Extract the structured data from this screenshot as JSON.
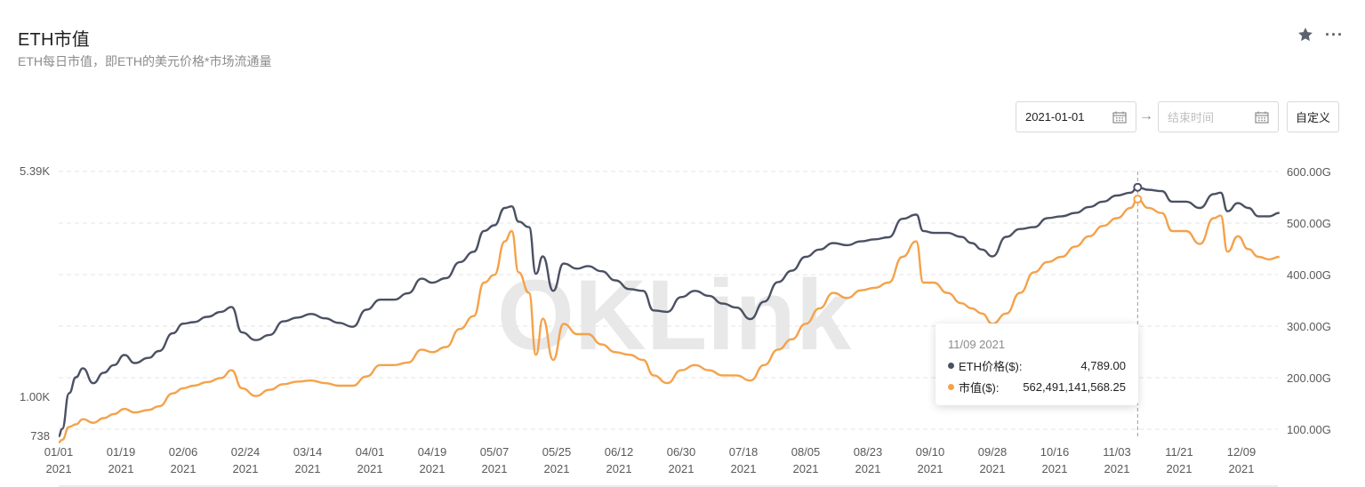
{
  "header": {
    "title": "ETH市值",
    "subtitle": "ETH每日市值，即ETH的美元价格*市场流通量"
  },
  "toolbar": {
    "favorite_icon": "star-icon",
    "more_label": "···"
  },
  "date_range": {
    "start_value": "2021-01-01",
    "end_placeholder": "结束时间",
    "separator_icon": "arrow-right-icon",
    "calendar_icon": "calendar-icon",
    "custom_label": "自定义"
  },
  "watermark": "OKLink",
  "tooltip": {
    "date": "11/09 2021",
    "rows": [
      {
        "label": "ETH价格($):",
        "value": "4,789.00"
      },
      {
        "label": "市值($):",
        "value": "562,491,141,568.25"
      }
    ]
  },
  "colors": {
    "price": "#4a5163",
    "market_cap": "#f4a24a",
    "grid": "#e5e5e5",
    "crosshair": "#9a9a9a"
  },
  "chart_data": {
    "type": "line",
    "x_tick_labels": [
      [
        "01/01",
        "2021"
      ],
      [
        "01/19",
        "2021"
      ],
      [
        "02/06",
        "2021"
      ],
      [
        "02/24",
        "2021"
      ],
      [
        "03/14",
        "2021"
      ],
      [
        "04/01",
        "2021"
      ],
      [
        "04/19",
        "2021"
      ],
      [
        "05/07",
        "2021"
      ],
      [
        "05/25",
        "2021"
      ],
      [
        "06/12",
        "2021"
      ],
      [
        "06/30",
        "2021"
      ],
      [
        "07/18",
        "2021"
      ],
      [
        "08/05",
        "2021"
      ],
      [
        "08/23",
        "2021"
      ],
      [
        "09/10",
        "2021"
      ],
      [
        "09/28",
        "2021"
      ],
      [
        "10/16",
        "2021"
      ],
      [
        "11/03",
        "2021"
      ],
      [
        "11/21",
        "2021"
      ],
      [
        "12/09",
        "2021"
      ]
    ],
    "y_left_ticks": [
      "5.39K",
      "1.00K",
      "738"
    ],
    "y_left_values": [
      5390,
      1000,
      738
    ],
    "y_right_ticks": [
      "600.00G",
      "500.00G",
      "400.00G",
      "300.00G",
      "200.00G",
      "100.00G"
    ],
    "y_right_range": [
      100,
      600
    ],
    "highlight_date": "11/09 2021",
    "series": [
      {
        "name": "ETH价格($)",
        "axis": "left",
        "x": [
          "01/01",
          "01/02",
          "01/04",
          "01/06",
          "01/08",
          "01/11",
          "01/14",
          "01/17",
          "01/20",
          "01/23",
          "01/27",
          "01/30",
          "02/03",
          "02/06",
          "02/09",
          "02/13",
          "02/17",
          "02/20",
          "02/23",
          "02/27",
          "03/03",
          "03/07",
          "03/11",
          "03/15",
          "03/19",
          "03/23",
          "03/27",
          "03/31",
          "04/04",
          "04/08",
          "04/12",
          "04/16",
          "04/19",
          "04/23",
          "04/27",
          "05/01",
          "05/04",
          "05/07",
          "05/10",
          "05/12",
          "05/14",
          "05/17",
          "05/19",
          "05/21",
          "05/24",
          "05/27",
          "05/31",
          "06/03",
          "06/07",
          "06/11",
          "06/15",
          "06/19",
          "06/22",
          "06/26",
          "06/30",
          "07/04",
          "07/08",
          "07/12",
          "07/16",
          "07/20",
          "07/24",
          "07/28",
          "08/01",
          "08/05",
          "08/09",
          "08/13",
          "08/17",
          "08/21",
          "08/25",
          "08/29",
          "09/02",
          "09/06",
          "09/08",
          "09/11",
          "09/15",
          "09/19",
          "09/22",
          "09/25",
          "09/28",
          "10/02",
          "10/06",
          "10/10",
          "10/14",
          "10/18",
          "10/22",
          "10/26",
          "10/30",
          "11/03",
          "11/07",
          "11/09",
          "11/12",
          "11/16",
          "11/19",
          "11/23",
          "11/27",
          "12/01",
          "12/03",
          "12/05",
          "12/08",
          "12/11",
          "12/14",
          "12/17",
          "12/20"
        ],
        "y": [
          738,
          780,
          1020,
          1150,
          1230,
          1100,
          1190,
          1260,
          1360,
          1280,
          1330,
          1400,
          1600,
          1720,
          1740,
          1810,
          1880,
          1950,
          1610,
          1520,
          1580,
          1750,
          1800,
          1850,
          1790,
          1730,
          1680,
          1910,
          2060,
          2060,
          2160,
          2410,
          2340,
          2420,
          2730,
          2950,
          3450,
          3600,
          4100,
          4150,
          3700,
          3550,
          2500,
          2850,
          2200,
          2700,
          2600,
          2650,
          2550,
          2380,
          2230,
          2200,
          1900,
          1880,
          2100,
          2200,
          2120,
          2000,
          1940,
          1780,
          2030,
          2350,
          2560,
          2840,
          3000,
          3150,
          3100,
          3190,
          3240,
          3290,
          3780,
          3900,
          3450,
          3400,
          3400,
          3300,
          3150,
          3000,
          2850,
          3300,
          3500,
          3550,
          3800,
          3850,
          3950,
          4130,
          4300,
          4500,
          4600,
          4789,
          4700,
          4650,
          4300,
          4300,
          4100,
          4550,
          4600,
          4000,
          4250,
          4100,
          3850,
          3850,
          3950
        ]
      },
      {
        "name": "市值($)",
        "axis": "right",
        "x": [
          "01/01",
          "01/02",
          "01/04",
          "01/06",
          "01/08",
          "01/11",
          "01/14",
          "01/17",
          "01/20",
          "01/23",
          "01/27",
          "01/30",
          "02/03",
          "02/06",
          "02/09",
          "02/13",
          "02/17",
          "02/20",
          "02/23",
          "02/27",
          "03/03",
          "03/07",
          "03/11",
          "03/15",
          "03/19",
          "03/23",
          "03/27",
          "03/31",
          "04/04",
          "04/08",
          "04/12",
          "04/16",
          "04/19",
          "04/23",
          "04/27",
          "05/01",
          "05/04",
          "05/07",
          "05/10",
          "05/12",
          "05/14",
          "05/17",
          "05/19",
          "05/21",
          "05/24",
          "05/27",
          "05/31",
          "06/03",
          "06/07",
          "06/11",
          "06/15",
          "06/19",
          "06/22",
          "06/26",
          "06/30",
          "07/04",
          "07/08",
          "07/12",
          "07/16",
          "07/20",
          "07/24",
          "07/28",
          "08/01",
          "08/05",
          "08/09",
          "08/13",
          "08/17",
          "08/21",
          "08/25",
          "08/29",
          "09/02",
          "09/06",
          "09/08",
          "09/11",
          "09/15",
          "09/19",
          "09/22",
          "09/25",
          "09/28",
          "10/02",
          "10/06",
          "10/10",
          "10/14",
          "10/18",
          "10/22",
          "10/26",
          "10/30",
          "11/03",
          "11/07",
          "11/09",
          "11/12",
          "11/16",
          "11/19",
          "11/23",
          "11/27",
          "12/01",
          "12/03",
          "12/05",
          "12/08",
          "12/11",
          "12/14",
          "12/17",
          "12/20"
        ],
        "y": [
          90,
          95,
          120,
          125,
          135,
          128,
          137,
          145,
          155,
          148,
          153,
          160,
          185,
          195,
          200,
          207,
          215,
          230,
          195,
          180,
          192,
          203,
          208,
          210,
          205,
          200,
          200,
          218,
          240,
          240,
          245,
          270,
          265,
          275,
          310,
          335,
          400,
          415,
          480,
          500,
          420,
          380,
          260,
          330,
          250,
          320,
          300,
          300,
          280,
          265,
          260,
          250,
          220,
          205,
          230,
          240,
          230,
          220,
          220,
          210,
          240,
          270,
          290,
          320,
          350,
          380,
          370,
          385,
          390,
          400,
          450,
          480,
          400,
          400,
          380,
          360,
          350,
          340,
          320,
          340,
          380,
          420,
          440,
          450,
          470,
          490,
          510,
          525,
          545,
          562,
          545,
          535,
          500,
          500,
          475,
          525,
          530,
          460,
          490,
          465,
          450,
          445,
          450
        ]
      }
    ]
  }
}
